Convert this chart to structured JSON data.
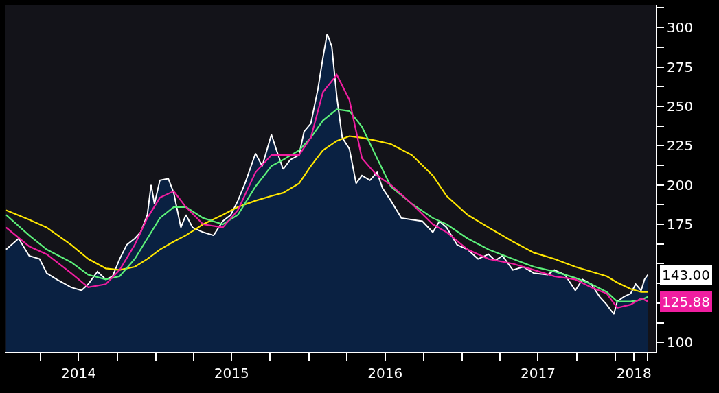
{
  "chart_data": {
    "type": "line",
    "grid": false,
    "marker": "none",
    "line_style": "solid",
    "xlim": [
      "2014-01-06",
      "2018-04-08"
    ],
    "ylim": [
      94,
      314
    ],
    "yticks": [
      100,
      {
        "value": 112.5,
        "label": null
      },
      {
        "value": 125,
        "label": null
      },
      {
        "value": 137.5,
        "label": null
      },
      {
        "value": 150,
        "label": null
      },
      {
        "value": 162.5,
        "label": null
      },
      175,
      {
        "value": 187.5,
        "label": null
      },
      200,
      {
        "value": 212.5,
        "label": null
      },
      225,
      {
        "value": 237.5,
        "label": null
      },
      250,
      {
        "value": 262.5,
        "label": null
      },
      275,
      {
        "value": 287.5,
        "label": null
      },
      300,
      {
        "value": 312.5,
        "label": null
      }
    ],
    "xticks": [
      {
        "value": "2014-04-01",
        "label": null
      },
      {
        "value": "2014-07-01",
        "label": "2014"
      },
      {
        "value": "2014-10-01",
        "label": null
      },
      {
        "value": "2015-01-01",
        "label": null
      },
      {
        "value": "2015-04-01",
        "label": null
      },
      {
        "value": "2015-07-01",
        "label": "2015"
      },
      {
        "value": "2015-10-01",
        "label": null
      },
      {
        "value": "2016-01-01",
        "label": null
      },
      {
        "value": "2016-04-01",
        "label": null
      },
      {
        "value": "2016-07-01",
        "label": "2016"
      },
      {
        "value": "2016-10-01",
        "label": null
      },
      {
        "value": "2017-01-01",
        "label": null
      },
      {
        "value": "2017-04-01",
        "label": null
      },
      {
        "value": "2017-07-01",
        "label": "2017"
      },
      {
        "value": "2017-10-01",
        "label": null
      },
      {
        "value": "2018-01-01",
        "label": null
      },
      {
        "value": "2018-02-15",
        "label": "2018"
      },
      {
        "value": "2018-03-20",
        "label": null
      }
    ],
    "series": [
      {
        "type": "area",
        "color": "#ffffff",
        "x": [
          "2014-01-09",
          "2014-02-08",
          "2014-03-05",
          "2014-03-30",
          "2014-04-16",
          "2014-05-10",
          "2014-06-13",
          "2014-07-08",
          "2014-07-24",
          "2014-08-15",
          "2014-09-04",
          "2014-09-20",
          "2014-10-07",
          "2014-10-24",
          "2014-11-12",
          "2014-11-26",
          "2014-12-12",
          "2014-12-21",
          "2014-12-29",
          "2015-01-11",
          "2015-01-31",
          "2015-02-13",
          "2015-03-02",
          "2015-03-14",
          "2015-03-30",
          "2015-04-24",
          "2015-05-19",
          "2015-06-10",
          "2015-06-29",
          "2015-07-16",
          "2015-08-02",
          "2015-08-27",
          "2015-09-12",
          "2015-10-04",
          "2015-10-15",
          "2015-11-01",
          "2015-11-18",
          "2015-12-09",
          "2015-12-21",
          "2016-01-06",
          "2016-01-23",
          "2016-02-04",
          "2016-02-14",
          "2016-02-25",
          "2016-03-08",
          "2016-03-21",
          "2016-04-07",
          "2016-04-23",
          "2016-05-07",
          "2016-05-26",
          "2016-06-12",
          "2016-06-25",
          "2016-07-15",
          "2016-08-09",
          "2016-09-03",
          "2016-09-28",
          "2016-10-23",
          "2016-11-08",
          "2016-11-25",
          "2016-12-20",
          "2017-01-14",
          "2017-02-08",
          "2017-03-05",
          "2017-03-21",
          "2017-04-07",
          "2017-05-02",
          "2017-05-27",
          "2017-06-21",
          "2017-07-24",
          "2017-08-09",
          "2017-09-03",
          "2017-09-28",
          "2017-10-15",
          "2017-11-05",
          "2017-11-25",
          "2017-12-12",
          "2017-12-20",
          "2017-12-29",
          "2018-01-06",
          "2018-01-22",
          "2018-02-07",
          "2018-02-19",
          "2018-03-04",
          "2018-03-12",
          "2018-03-20"
        ],
        "values": [
          159,
          166,
          155,
          153,
          144,
          140,
          135,
          133,
          137,
          145,
          140,
          142,
          153,
          162,
          166,
          170,
          181,
          200,
          188,
          203,
          204,
          195,
          173,
          181,
          173,
          170,
          168,
          177,
          181,
          190,
          201,
          220,
          212,
          232,
          223,
          210,
          216,
          219,
          234,
          239,
          261,
          281,
          296,
          288,
          256,
          230,
          223,
          201,
          206,
          203,
          208,
          198,
          190,
          179,
          178,
          177,
          170,
          177,
          173,
          162,
          159,
          153,
          156,
          152,
          155,
          146,
          148,
          144,
          143,
          146,
          143,
          133,
          140,
          137,
          129,
          124,
          121,
          118,
          126,
          129,
          131,
          137,
          133,
          140,
          143
        ]
      },
      {
        "color": "#ffe600",
        "x": [
          "2014-01-09",
          "2014-03-05",
          "2014-04-16",
          "2014-06-13",
          "2014-07-24",
          "2014-09-04",
          "2014-10-07",
          "2014-11-12",
          "2014-12-12",
          "2015-01-11",
          "2015-02-13",
          "2015-03-14",
          "2015-04-24",
          "2015-06-10",
          "2015-07-16",
          "2015-08-27",
          "2015-10-04",
          "2015-11-01",
          "2015-12-09",
          "2016-01-06",
          "2016-02-04",
          "2016-03-08",
          "2016-04-07",
          "2016-05-07",
          "2016-06-12",
          "2016-07-15",
          "2016-09-03",
          "2016-10-23",
          "2016-11-25",
          "2017-01-14",
          "2017-03-05",
          "2017-05-02",
          "2017-06-21",
          "2017-08-09",
          "2017-09-28",
          "2017-11-05",
          "2017-12-12",
          "2018-01-06",
          "2018-02-07",
          "2018-03-04",
          "2018-03-20"
        ],
        "values": [
          184,
          178,
          173,
          162,
          153,
          147,
          146,
          148,
          153,
          159,
          164,
          168,
          175,
          181,
          186,
          190,
          193,
          195,
          201,
          212,
          222,
          228,
          231,
          230,
          228,
          226,
          219,
          206,
          193,
          181,
          173,
          164,
          157,
          153,
          148,
          145,
          142,
          138,
          134,
          132,
          132
        ]
      },
      {
        "color": "#5cf07a",
        "x": [
          "2014-01-09",
          "2014-03-05",
          "2014-04-16",
          "2014-06-13",
          "2014-07-24",
          "2014-09-04",
          "2014-10-07",
          "2014-11-12",
          "2014-12-12",
          "2015-01-11",
          "2015-02-13",
          "2015-03-14",
          "2015-04-24",
          "2015-06-10",
          "2015-07-16",
          "2015-08-27",
          "2015-10-04",
          "2015-11-01",
          "2015-12-09",
          "2016-01-06",
          "2016-02-04",
          "2016-03-08",
          "2016-04-07",
          "2016-05-07",
          "2016-06-12",
          "2016-07-15",
          "2016-09-03",
          "2016-10-23",
          "2016-11-25",
          "2017-01-14",
          "2017-03-05",
          "2017-05-02",
          "2017-06-21",
          "2017-08-09",
          "2017-09-28",
          "2017-11-05",
          "2017-12-12",
          "2018-01-06",
          "2018-02-07",
          "2018-03-04",
          "2018-03-20"
        ],
        "values": [
          181,
          168,
          159,
          151,
          143,
          140,
          142,
          153,
          166,
          179,
          186,
          186,
          179,
          175,
          181,
          199,
          212,
          216,
          222,
          230,
          241,
          248,
          247,
          237,
          217,
          199,
          188,
          179,
          175,
          166,
          159,
          153,
          148,
          145,
          141,
          137,
          132,
          126,
          126,
          127,
          129
        ]
      },
      {
        "color": "#f01ea0",
        "x": [
          "2014-01-09",
          "2014-03-05",
          "2014-04-16",
          "2014-06-13",
          "2014-07-24",
          "2014-09-04",
          "2014-10-07",
          "2014-11-12",
          "2014-12-12",
          "2015-01-11",
          "2015-02-13",
          "2015-03-14",
          "2015-04-24",
          "2015-06-10",
          "2015-07-16",
          "2015-08-27",
          "2015-10-04",
          "2015-11-01",
          "2015-12-09",
          "2016-01-06",
          "2016-02-04",
          "2016-03-08",
          "2016-04-07",
          "2016-05-07",
          "2016-06-12",
          "2016-07-15",
          "2016-09-03",
          "2016-10-23",
          "2016-11-25",
          "2017-01-14",
          "2017-03-05",
          "2017-05-02",
          "2017-06-21",
          "2017-08-09",
          "2017-09-28",
          "2017-11-05",
          "2017-12-12",
          "2018-01-06",
          "2018-02-07",
          "2018-03-04",
          "2018-03-20"
        ],
        "values": [
          173,
          161,
          156,
          144,
          135,
          137,
          146,
          162,
          179,
          192,
          196,
          186,
          175,
          173,
          184,
          208,
          219,
          219,
          219,
          230,
          259,
          270,
          254,
          217,
          206,
          200,
          188,
          175,
          170,
          159,
          153,
          150,
          146,
          142,
          140,
          135,
          131,
          122,
          124,
          128,
          126
        ]
      }
    ],
    "annotations": [
      {
        "text": "143.00",
        "x": "2018-03-20",
        "y": 143
      },
      {
        "text": "125.88",
        "x": "2018-03-20",
        "y": 125.88
      }
    ]
  }
}
